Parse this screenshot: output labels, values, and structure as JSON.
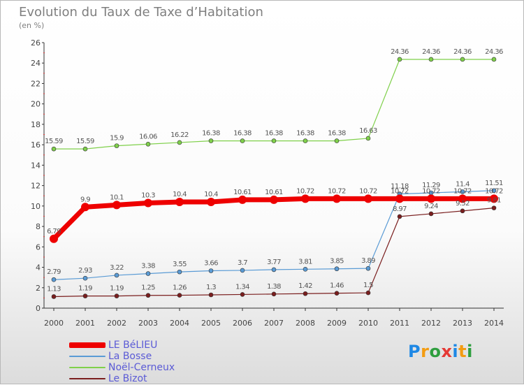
{
  "header": {
    "title": "Evolution du Taux de Taxe d’Habitation",
    "subtitle": "(en %)"
  },
  "logo": {
    "text": "Proxiti",
    "letters": [
      "P",
      "r",
      "o",
      "x",
      "i",
      "t",
      "i"
    ],
    "colors": [
      "#1e88e5",
      "#f39c12",
      "#2e9e3e",
      "#e53935",
      "#1e88e5",
      "#f39c12",
      "#2e9e3e"
    ]
  },
  "chart_data": {
    "type": "line",
    "title": "Evolution du Taux de Taxe d’Habitation",
    "ylabel": "(en %)",
    "x": [
      "2000",
      "2001",
      "2002",
      "2003",
      "2004",
      "2005",
      "2006",
      "2007",
      "2008",
      "2009",
      "2010",
      "2011",
      "2012",
      "2013",
      "2014"
    ],
    "ylim": [
      0,
      26
    ],
    "yticks": [
      0,
      2,
      4,
      6,
      8,
      10,
      12,
      14,
      16,
      18,
      20,
      22,
      24,
      26
    ],
    "grid": false,
    "legend_position": "bottom-left",
    "series": [
      {
        "name": "Noël-Cerneux",
        "color": "#7fd04a",
        "width": 1.2,
        "values": [
          15.59,
          15.59,
          15.9,
          16.06,
          16.22,
          16.38,
          16.38,
          16.38,
          16.38,
          16.38,
          16.63,
          24.36,
          24.36,
          24.36,
          24.36
        ],
        "labels": [
          "15.59",
          "15.59",
          "15.9",
          "16.06",
          "16.22",
          "16.38",
          "16.38",
          "16.38",
          "16.38",
          "16.38",
          "16.63",
          "24.36",
          "24.36",
          "24.36",
          "24.36"
        ]
      },
      {
        "name": "La Bosse",
        "color": "#5a9bd5",
        "width": 1.2,
        "values": [
          2.79,
          2.93,
          3.22,
          3.38,
          3.55,
          3.66,
          3.7,
          3.77,
          3.81,
          3.85,
          3.89,
          11.18,
          11.29,
          11.4,
          11.51
        ],
        "labels": [
          "2.79",
          "2.93",
          "3.22",
          "3.38",
          "3.55",
          "3.66",
          "3.7",
          "3.77",
          "3.81",
          "3.85",
          "3.89",
          "11.18",
          "11.29",
          "11.4",
          "11.51"
        ]
      },
      {
        "name": "Le Bizot",
        "color": "#7a1e1e",
        "width": 1.2,
        "values": [
          1.13,
          1.19,
          1.19,
          1.25,
          1.26,
          1.3,
          1.34,
          1.38,
          1.42,
          1.46,
          1.5,
          8.97,
          9.24,
          9.52,
          9.81
        ],
        "labels": [
          "1.13",
          "1.19",
          "1.19",
          "1.25",
          "1.26",
          "1.3",
          "1.34",
          "1.38",
          "1.42",
          "1.46",
          "1.5",
          "8.97",
          "9.24",
          "9.52",
          "9.81"
        ]
      },
      {
        "name": "LE BéLIEU",
        "color": "#ee0000",
        "width": 7,
        "values": [
          6.79,
          9.9,
          10.1,
          10.3,
          10.4,
          10.4,
          10.61,
          10.61,
          10.72,
          10.72,
          10.72,
          10.72,
          10.72,
          10.72,
          10.72
        ],
        "labels": [
          "6.79",
          "9.9",
          "10.1",
          "10.3",
          "10.4",
          "10.4",
          "10.61",
          "10.61",
          "10.72",
          "10.72",
          "10.72",
          "10.72",
          "10.72",
          "10.72",
          "10.72"
        ]
      }
    ],
    "legend_order": [
      "LE BéLIEU",
      "La Bosse",
      "Noël-Cerneux",
      "Le Bizot"
    ]
  }
}
